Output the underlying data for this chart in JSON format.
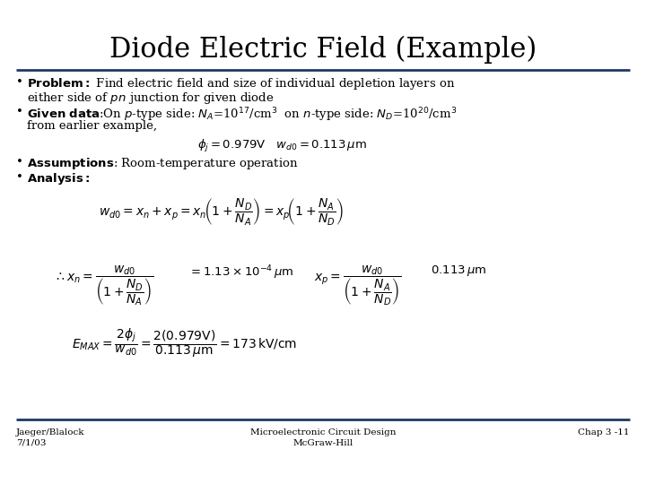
{
  "title": "Diode Electric Field (Example)",
  "bg": "#ffffff",
  "title_fontsize": 22,
  "rule_color": "#1f3864",
  "footer_left": "Jaeger/Blalock\n7/1/03",
  "footer_center": "Microelectronic Circuit Design\nMcGraw-Hill",
  "footer_right": "Chap 3 -11",
  "fs": 9.5,
  "fs_eq": 9.0
}
